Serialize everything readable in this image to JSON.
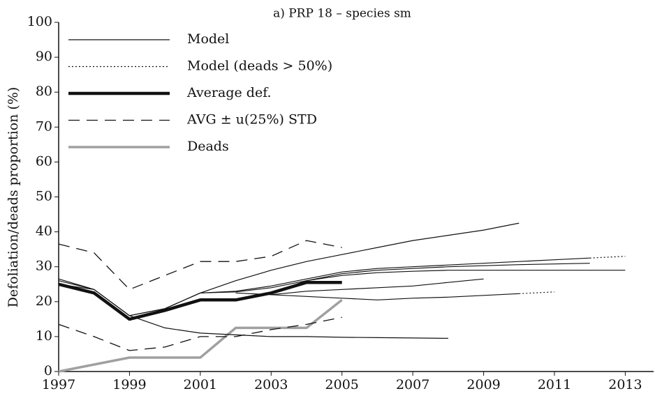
{
  "chart_data": {
    "type": "line",
    "title": "a) PRP 18 – species sm",
    "y_label": "Defoliation/deads proportion (%)",
    "x": [
      1997,
      1998,
      1999,
      2000,
      2001,
      2002,
      2003,
      2004,
      2005,
      2006,
      2007,
      2008,
      2009,
      2010,
      2011,
      2012,
      2013
    ],
    "xlim": [
      1997,
      2013.8
    ],
    "xticks": [
      1997,
      1999,
      2001,
      2003,
      2005,
      2007,
      2009,
      2011,
      2013
    ],
    "ylim": [
      0,
      100
    ],
    "yticks": [
      0,
      10,
      20,
      30,
      40,
      50,
      60,
      70,
      80,
      90,
      100
    ],
    "legend": "upper left",
    "series": [
      {
        "name": "Model",
        "color": "#111111",
        "line_style": "solid",
        "values": [
          26.5,
          23.5,
          16,
          18,
          22.5,
          26,
          29,
          31.5,
          33.5,
          35.5,
          37.5,
          39,
          40.5,
          42.5,
          null,
          null,
          null
        ]
      },
      {
        "name": "Model (deads > 50%)",
        "color": "#111111",
        "line_style": "dotted",
        "values": [
          null,
          null,
          null,
          null,
          null,
          null,
          null,
          null,
          null,
          null,
          null,
          null,
          null,
          null,
          null,
          32.5,
          33
        ]
      },
      {
        "name": "Average def.",
        "color": "#111111",
        "line_style": "thick",
        "values": [
          25,
          22.5,
          15,
          17.5,
          20.5,
          20.5,
          22.5,
          25.5,
          25.5,
          null,
          null,
          null,
          null,
          null,
          null,
          null,
          null
        ]
      },
      {
        "name": "AVG ± u(25%) STD",
        "color": "#111111",
        "line_style": "dashed",
        "values": [
          36.5,
          34,
          23.5,
          27.5,
          31.5,
          31.5,
          33,
          37.5,
          35.5,
          null,
          null,
          null,
          null,
          null,
          null,
          null,
          null
        ]
      },
      {
        "name": "Deads",
        "color": "#a0a0a0",
        "line_style": "gray",
        "values": [
          0,
          2,
          4,
          4,
          4,
          12.5,
          12.5,
          12.5,
          20.5,
          null,
          null,
          null,
          null,
          null,
          null,
          null,
          null
        ]
      },
      {
        "name": "Model",
        "color": "#111111",
        "line_style": "solid",
        "values": [
          26,
          23.5,
          16,
          18,
          22.5,
          23,
          24.5,
          26.5,
          28.5,
          29.5,
          30,
          30.5,
          31,
          31.5,
          32,
          32.5,
          null
        ]
      },
      {
        "name": "Model",
        "color": "#111111",
        "line_style": "solid",
        "values": [
          null,
          null,
          null,
          null,
          22.5,
          22.8,
          24,
          26,
          28,
          29,
          29.5,
          30,
          30.3,
          30.6,
          30.8,
          31,
          null
        ]
      },
      {
        "name": "Model",
        "color": "#111111",
        "line_style": "solid",
        "values": [
          null,
          null,
          null,
          null,
          null,
          null,
          22.5,
          26,
          27.5,
          28.3,
          28.7,
          29,
          29,
          29,
          29,
          29,
          29
        ]
      },
      {
        "name": "Model",
        "color": "#111111",
        "line_style": "solid",
        "values": [
          null,
          null,
          null,
          null,
          null,
          22.5,
          22,
          23,
          23.5,
          24,
          24.5,
          25.5,
          26.5,
          null,
          null,
          null,
          null
        ]
      },
      {
        "name": "Model",
        "color": "#111111",
        "line_style": "solid",
        "values": [
          null,
          null,
          null,
          null,
          null,
          null,
          22,
          21.5,
          21,
          20.5,
          21,
          21.3,
          21.8,
          22.3,
          null,
          null,
          null
        ]
      },
      {
        "name": "Model (deads > 50%)",
        "color": "#111111",
        "line_style": "dotted",
        "values": [
          null,
          null,
          null,
          null,
          null,
          null,
          null,
          null,
          null,
          null,
          null,
          null,
          null,
          22.3,
          22.8,
          null,
          null
        ]
      },
      {
        "name": "Model",
        "color": "#111111",
        "line_style": "solid",
        "values": [
          26,
          null,
          20.5,
          null,
          17.5,
          null,
          15.5,
          null,
          14,
          null,
          12.5,
          null,
          null,
          null,
          null,
          null,
          null
        ]
      },
      {
        "name": "Model",
        "color": "#111111",
        "line_style": "solid",
        "values": [
          25,
          23.5,
          16,
          12.5,
          11,
          10.5,
          10,
          10,
          9.8,
          9.7,
          9.6,
          9.5,
          null,
          null,
          null,
          null,
          null
        ]
      },
      {
        "name": "AVG ± u(25%) STD",
        "color": "#111111",
        "line_style": "dashed",
        "values": [
          13.5,
          10,
          6,
          7,
          10,
          10,
          12,
          13.5,
          15.5,
          null,
          null,
          null,
          null,
          null,
          null,
          null,
          null
        ]
      }
    ]
  }
}
